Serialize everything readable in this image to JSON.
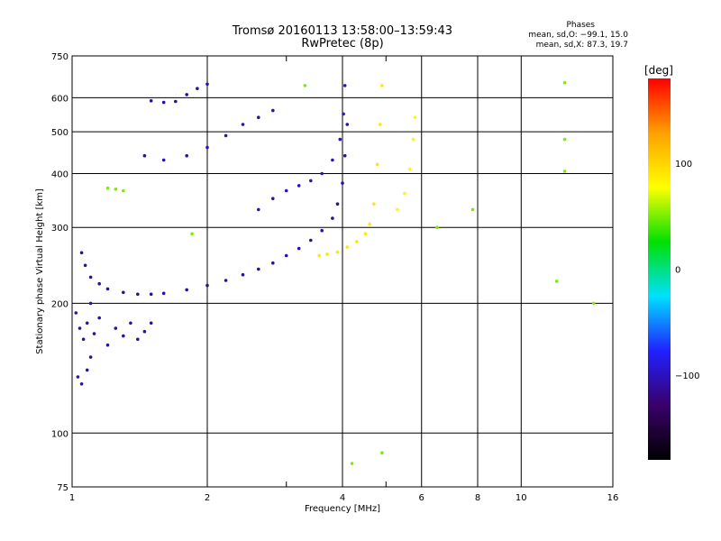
{
  "chart_data": {
    "type": "scatter",
    "title": "Tromsø 20160113 13:58:00–13:59:43",
    "subtitle": "RwPretec (8p)",
    "xlabel": "Frequency [MHz]",
    "ylabel": "Stationary phase Virtual Height [km]",
    "x_scale": "log",
    "y_scale": "log",
    "xlim": [
      1,
      16
    ],
    "ylim": [
      75,
      750
    ],
    "x_ticks": [
      1,
      2,
      4,
      6,
      8,
      10,
      16
    ],
    "x_ticklabels": [
      "1",
      "2",
      "4",
      "6",
      "8",
      "10",
      "16"
    ],
    "x_minor_ticks": [
      3,
      5
    ],
    "y_ticks": [
      75,
      100,
      200,
      300,
      400,
      500,
      600,
      750
    ],
    "y_ticklabels": [
      "75",
      "100",
      "200",
      "300",
      "400",
      "500",
      "600",
      "750"
    ],
    "grid": true,
    "legend_block": {
      "heading": "Phases",
      "line_o": "mean, sd,O: −99.1, 15.0",
      "line_x": "mean, sd,X:  87.3, 19.7"
    },
    "colorbar": {
      "label": "[deg]",
      "range": [
        -180,
        180
      ],
      "ticks": [
        100,
        0,
        -100
      ],
      "ticklabels": [
        "100",
        "0",
        "−100"
      ],
      "colors": [
        "#000000",
        "#3a006a",
        "#2020ff",
        "#00e0ff",
        "#00e000",
        "#ffff00",
        "#ffa000",
        "#ff0000"
      ]
    },
    "series": [
      {
        "trace": "o-mode lower layer",
        "phase": -110,
        "points": [
          [
            1.05,
            262
          ],
          [
            1.07,
            245
          ],
          [
            1.1,
            230
          ],
          [
            1.15,
            222
          ],
          [
            1.2,
            216
          ],
          [
            1.3,
            212
          ],
          [
            1.4,
            210
          ],
          [
            1.5,
            210
          ],
          [
            1.6,
            211
          ],
          [
            1.8,
            215
          ],
          [
            2.0,
            220
          ],
          [
            2.2,
            226
          ],
          [
            2.4,
            233
          ],
          [
            2.6,
            240
          ],
          [
            2.8,
            248
          ],
          [
            3.0,
            258
          ],
          [
            3.2,
            268
          ],
          [
            3.4,
            280
          ],
          [
            3.6,
            295
          ],
          [
            3.8,
            315
          ],
          [
            3.9,
            340
          ],
          [
            4.0,
            380
          ],
          [
            4.05,
            440
          ],
          [
            4.1,
            520
          ]
        ]
      },
      {
        "trace": "o-mode upper branch",
        "phase": -100,
        "points": [
          [
            2.6,
            330
          ],
          [
            2.8,
            350
          ],
          [
            3.0,
            365
          ],
          [
            3.2,
            375
          ],
          [
            3.4,
            385
          ],
          [
            3.6,
            400
          ],
          [
            3.8,
            430
          ],
          [
            3.95,
            480
          ],
          [
            4.02,
            550
          ],
          [
            4.05,
            640
          ]
        ]
      },
      {
        "trace": "x-mode trace",
        "phase": 90,
        "points": [
          [
            3.55,
            258
          ],
          [
            3.7,
            260
          ],
          [
            3.9,
            263
          ],
          [
            4.1,
            270
          ],
          [
            4.3,
            278
          ],
          [
            4.5,
            290
          ],
          [
            4.6,
            305
          ],
          [
            4.7,
            340
          ],
          [
            4.78,
            420
          ],
          [
            4.85,
            520
          ],
          [
            4.9,
            640
          ]
        ]
      },
      {
        "trace": "x-mode high-frequency branch",
        "phase": 80,
        "points": [
          [
            5.3,
            330
          ],
          [
            5.5,
            360
          ],
          [
            5.65,
            410
          ],
          [
            5.75,
            480
          ],
          [
            5.8,
            540
          ]
        ]
      },
      {
        "trace": "second echo",
        "phase": -105,
        "points": [
          [
            1.45,
            440
          ],
          [
            1.6,
            430
          ],
          [
            1.8,
            440
          ],
          [
            2.0,
            460
          ],
          [
            2.2,
            490
          ],
          [
            2.4,
            520
          ],
          [
            2.6,
            540
          ],
          [
            2.8,
            560
          ]
        ]
      },
      {
        "trace": "third echo",
        "phase": -110,
        "points": [
          [
            1.5,
            590
          ],
          [
            1.6,
            585
          ],
          [
            1.7,
            588
          ],
          [
            1.8,
            610
          ],
          [
            1.9,
            630
          ],
          [
            2.0,
            645
          ]
        ]
      },
      {
        "trace": "low-frequency spread echoes",
        "phase": -105,
        "points": [
          [
            1.02,
            190
          ],
          [
            1.04,
            175
          ],
          [
            1.06,
            165
          ],
          [
            1.08,
            180
          ],
          [
            1.1,
            200
          ],
          [
            1.12,
            170
          ],
          [
            1.15,
            185
          ],
          [
            1.2,
            160
          ],
          [
            1.25,
            175
          ],
          [
            1.3,
            168
          ],
          [
            1.35,
            180
          ],
          [
            1.4,
            165
          ],
          [
            1.45,
            172
          ],
          [
            1.5,
            180
          ],
          [
            1.03,
            135
          ],
          [
            1.05,
            130
          ],
          [
            1.08,
            140
          ],
          [
            1.1,
            150
          ]
        ]
      },
      {
        "trace": "isolated returns",
        "phase": 50,
        "points": [
          [
            1.2,
            370
          ],
          [
            1.25,
            368
          ],
          [
            1.3,
            365
          ],
          [
            1.85,
            290
          ],
          [
            3.3,
            640
          ],
          [
            4.2,
            85
          ],
          [
            4.9,
            90
          ],
          [
            6.5,
            300
          ],
          [
            7.8,
            330
          ],
          [
            12.5,
            650
          ],
          [
            12.5,
            480
          ],
          [
            12.5,
            405
          ],
          [
            12.0,
            225
          ],
          [
            14.5,
            200
          ]
        ]
      }
    ]
  }
}
